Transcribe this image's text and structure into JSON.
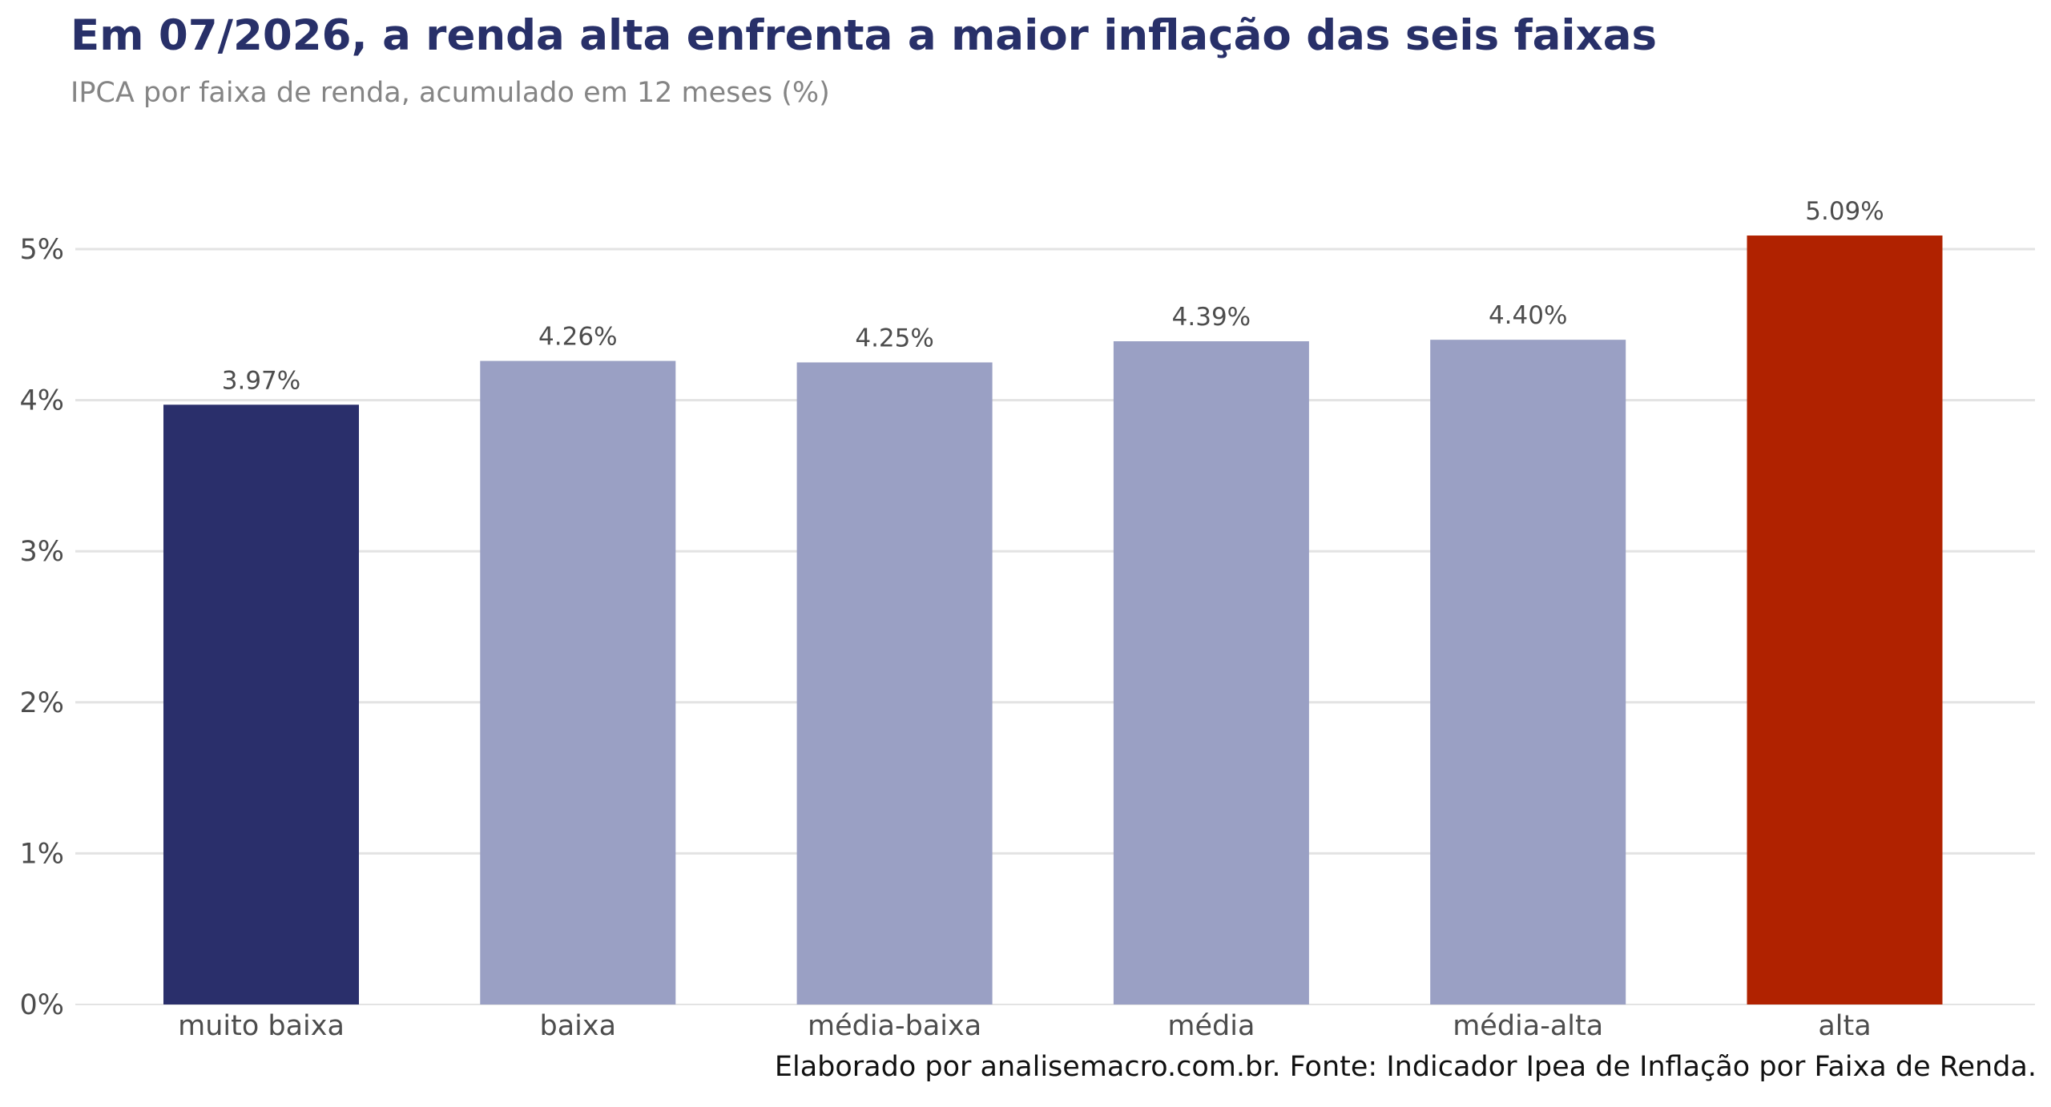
{
  "header": {
    "title": "Em 07/2026, a renda alta enfrenta a maior inflação das seis faixas",
    "subtitle": "IPCA por faixa de renda, acumulado em 12 meses (%)"
  },
  "footer": {
    "caption": "Elaborado por analisemacro.com.br. Fonte: Indicador Ipea de Inflação por Faixa de Renda."
  },
  "colors": {
    "title": "#283069",
    "lowest_income": "#2a2f6b",
    "middle_incomes": "#9aa0c4",
    "highest_income": "#b02200",
    "grid": "#e3e3e3"
  },
  "chart_data": {
    "type": "bar",
    "title": "Em 07/2026, a renda alta enfrenta a maior inflação das seis faixas",
    "subtitle": "IPCA por faixa de renda, acumulado em 12 meses (%)",
    "xlabel": "",
    "ylabel": "",
    "categories": [
      "muito baixa",
      "baixa",
      "média-baixa",
      "média",
      "média-alta",
      "alta"
    ],
    "values": [
      3.97,
      4.26,
      4.25,
      4.39,
      4.4,
      5.09
    ],
    "value_labels": [
      "3.97%",
      "4.26%",
      "4.25%",
      "4.39%",
      "4.40%",
      "5.09%"
    ],
    "bar_colors": [
      "#2a2f6b",
      "#9aa0c4",
      "#9aa0c4",
      "#9aa0c4",
      "#9aa0c4",
      "#b02200"
    ],
    "ylim": [
      0,
      5.3
    ],
    "yticks": [
      0,
      1,
      2,
      3,
      4,
      5
    ],
    "ytick_labels": [
      "0%",
      "1%",
      "2%",
      "3%",
      "4%",
      "5%"
    ],
    "grid": "horizontal",
    "legend": "none"
  }
}
